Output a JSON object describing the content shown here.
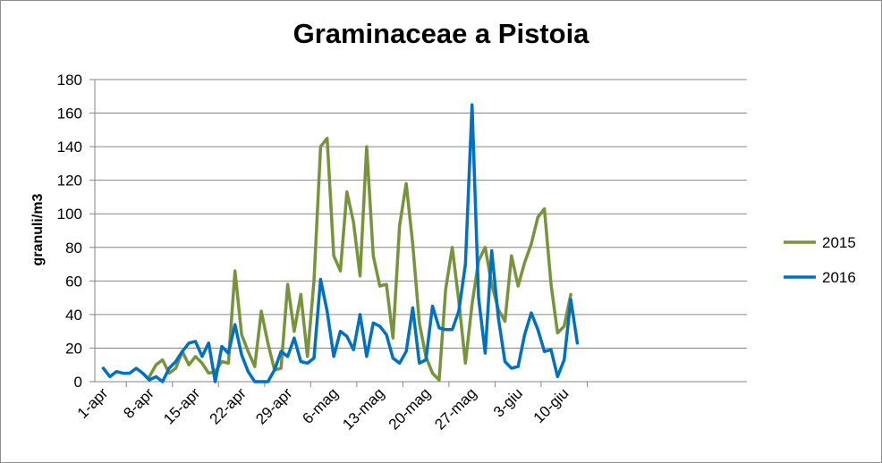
{
  "chart_data": {
    "type": "line",
    "title": "Graminaceae a Pistoia",
    "xlabel": "",
    "ylabel": "granuli/m3",
    "ylim": [
      0,
      180
    ],
    "yticks": [
      0,
      20,
      40,
      60,
      80,
      100,
      120,
      140,
      160,
      180
    ],
    "x_tick_labels": [
      "1-apr",
      "8-apr",
      "15-apr",
      "22-apr",
      "29-apr",
      "6-mag",
      "13-mag",
      "20-mag",
      "27-mag",
      "3-giu",
      "10-giu"
    ],
    "x_days": [
      "1-apr",
      "2-apr",
      "3-apr",
      "4-apr",
      "5-apr",
      "6-apr",
      "7-apr",
      "8-apr",
      "9-apr",
      "10-apr",
      "11-apr",
      "12-apr",
      "13-apr",
      "14-apr",
      "15-apr",
      "16-apr",
      "17-apr",
      "18-apr",
      "19-apr",
      "20-apr",
      "21-apr",
      "22-apr",
      "23-apr",
      "24-apr",
      "25-apr",
      "26-apr",
      "27-apr",
      "28-apr",
      "29-apr",
      "30-apr",
      "1-mag",
      "2-mag",
      "3-mag",
      "4-mag",
      "5-mag",
      "6-mag",
      "7-mag",
      "8-mag",
      "9-mag",
      "10-mag",
      "11-mag",
      "12-mag",
      "13-mag",
      "14-mag",
      "15-mag",
      "16-mag",
      "17-mag",
      "18-mag",
      "19-mag",
      "20-mag",
      "21-mag",
      "22-mag",
      "23-mag",
      "24-mag",
      "25-mag",
      "26-mag",
      "27-mag",
      "28-mag",
      "29-mag",
      "30-mag",
      "31-mag",
      "1-giu",
      "2-giu",
      "3-giu",
      "4-giu",
      "5-giu",
      "6-giu",
      "7-giu",
      "8-giu",
      "9-giu",
      "10-giu",
      "11-giu",
      "12-giu"
    ],
    "legend_position": "right",
    "grid": "horizontal",
    "series": [
      {
        "name": "2015",
        "color": "#77933c",
        "values": [
          null,
          null,
          null,
          null,
          null,
          null,
          null,
          3,
          10,
          13,
          5,
          8,
          18,
          10,
          15,
          11,
          5,
          6,
          12,
          11,
          66,
          28,
          18,
          9,
          42,
          23,
          7,
          8,
          58,
          30,
          52,
          15,
          60,
          140,
          145,
          75,
          66,
          113,
          95,
          63,
          140,
          75,
          57,
          58,
          26,
          93,
          118,
          82,
          35,
          15,
          5,
          1,
          55,
          80,
          48,
          11,
          46,
          72,
          80,
          58,
          43,
          36,
          75,
          57,
          71,
          82,
          98,
          103,
          58,
          29,
          33,
          52,
          null
        ]
      },
      {
        "name": "2016",
        "color": "#0070c0",
        "values": [
          8,
          3,
          6,
          5,
          5,
          8,
          5,
          1,
          3,
          0,
          8,
          12,
          18,
          23,
          24,
          15,
          23,
          0,
          21,
          17,
          34,
          16,
          6,
          0,
          0,
          0,
          7,
          18,
          15,
          26,
          12,
          11,
          14,
          61,
          42,
          15,
          30,
          27,
          19,
          40,
          15,
          35,
          33,
          28,
          14,
          11,
          18,
          44,
          11,
          13,
          45,
          32,
          31,
          31,
          42,
          70,
          165,
          50,
          17,
          78,
          38,
          12,
          8,
          9,
          28,
          41,
          31,
          18,
          19,
          3,
          13,
          49,
          23
        ]
      }
    ]
  }
}
